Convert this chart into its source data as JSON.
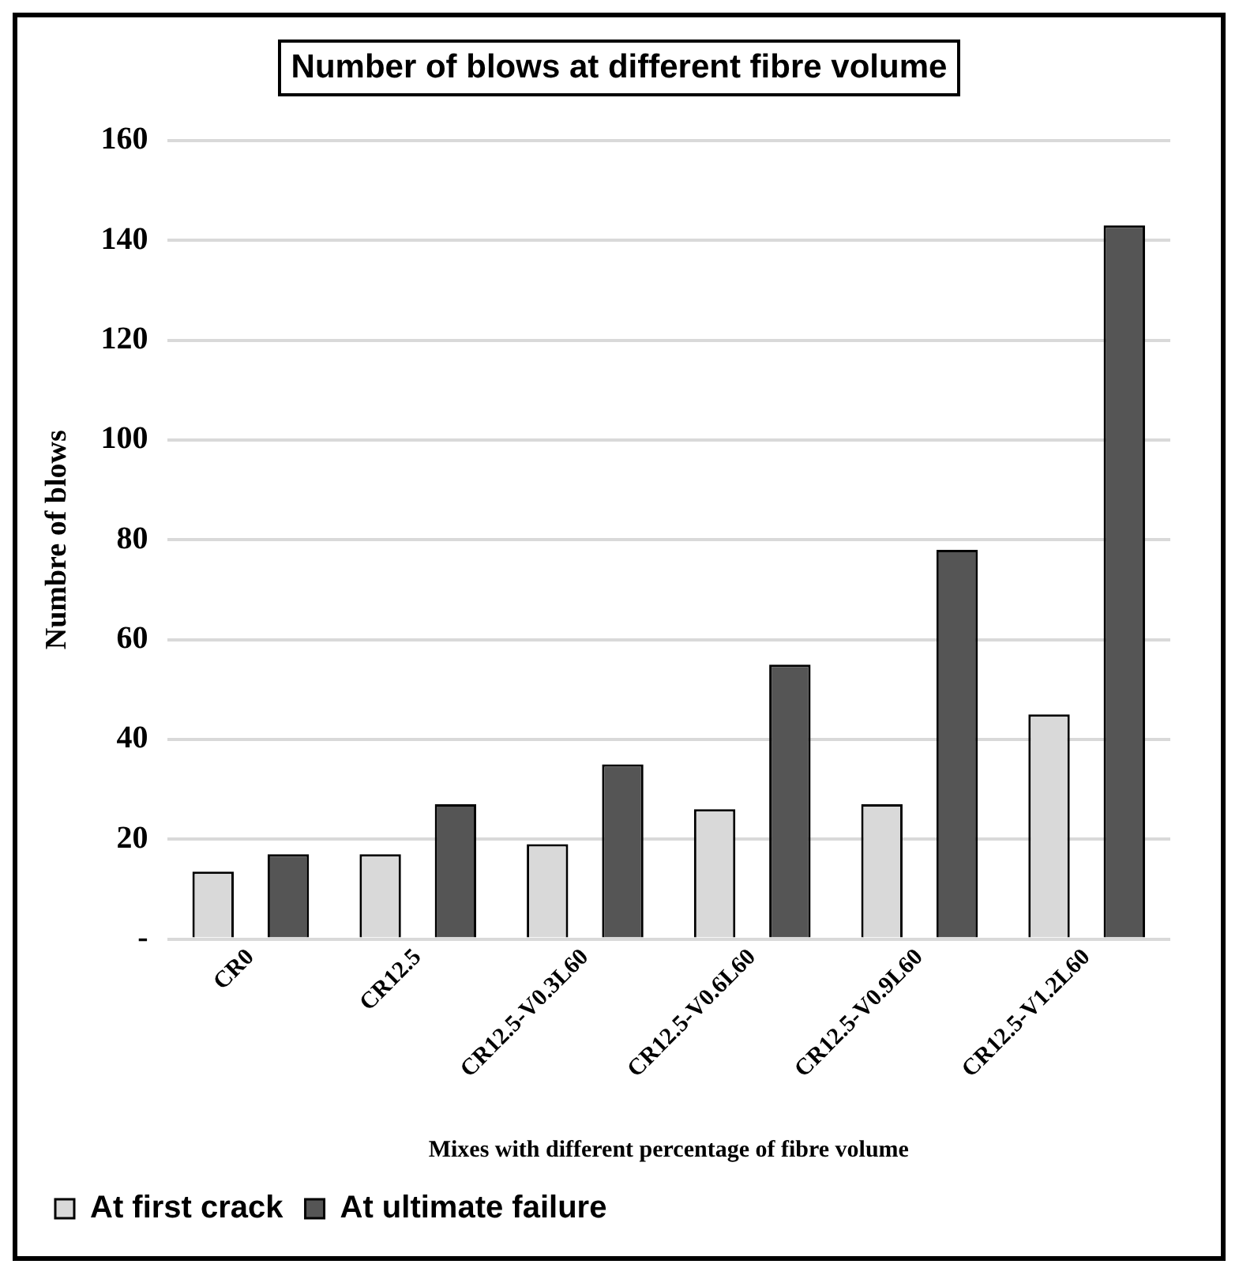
{
  "chart_data": {
    "type": "bar",
    "title": "Number of blows at different fibre volume",
    "xlabel": "Mixes with different percentage of fibre volume",
    "ylabel": "Numbre of blows",
    "categories": [
      "CR0",
      "CR12.5",
      "CR12.5-V0.3L60",
      "CR12.5-V0.6L60",
      "CR12.5-V0.9L60",
      "CR12.5-V1.2L60"
    ],
    "series": [
      {
        "name": "At first crack",
        "color": "#d9d9d9",
        "values": [
          13.5,
          17,
          19,
          26,
          27,
          45
        ]
      },
      {
        "name": "At ultimate failure",
        "color": "#555555",
        "values": [
          17,
          27,
          35,
          55,
          78,
          143
        ]
      }
    ],
    "ylim": [
      0,
      160
    ],
    "yticks": [
      {
        "value": 0,
        "label": "-"
      },
      20,
      40,
      60,
      80,
      100,
      120,
      140,
      160
    ],
    "grid": "y",
    "legend": "bottom"
  }
}
